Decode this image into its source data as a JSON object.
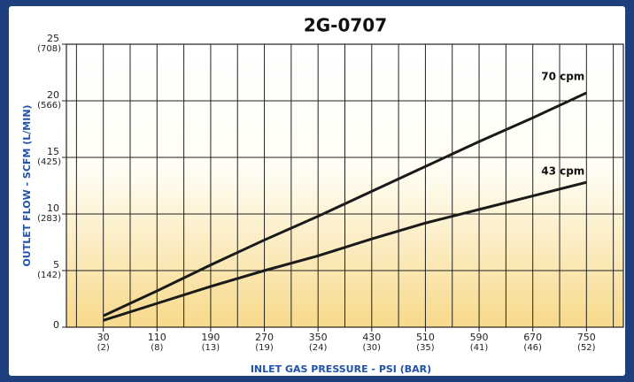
{
  "chart_data": {
    "type": "line",
    "title": "2G-0707",
    "x_label": "INLET GAS PRESSURE - PSI (BAR)",
    "y_label": "OUTLET FLOW - SCFM (L/MIN)",
    "x": [
      30,
      110,
      190,
      270,
      350,
      430,
      510,
      590,
      670,
      750
    ],
    "series": [
      {
        "name": "70 cpm",
        "color": "#1a1a1a",
        "values": [
          1.0,
          3.2,
          5.5,
          7.7,
          9.8,
          12.0,
          14.2,
          16.4,
          18.5,
          20.7
        ]
      },
      {
        "name": "43 cpm",
        "color": "#1a1a1a",
        "values": [
          0.6,
          2.1,
          3.6,
          5.0,
          6.3,
          7.8,
          9.2,
          10.4,
          11.6,
          12.8
        ]
      }
    ],
    "xlim": [
      -25,
      805
    ],
    "xticks": [
      {
        "value": 30,
        "label": "30",
        "sublabel": "(2)"
      },
      {
        "value": 110,
        "label": "110",
        "sublabel": "(8)"
      },
      {
        "value": 190,
        "label": "190",
        "sublabel": "(13)"
      },
      {
        "value": 270,
        "label": "270",
        "sublabel": "(19)"
      },
      {
        "value": 350,
        "label": "350",
        "sublabel": "(24)"
      },
      {
        "value": 430,
        "label": "430",
        "sublabel": "(30)"
      },
      {
        "value": 510,
        "label": "510",
        "sublabel": "(35)"
      },
      {
        "value": 590,
        "label": "590",
        "sublabel": "(41)"
      },
      {
        "value": 670,
        "label": "670",
        "sublabel": "(46)"
      },
      {
        "value": 750,
        "label": "750",
        "sublabel": "(52)"
      }
    ],
    "x_minor_grid": [
      -10,
      70,
      150,
      230,
      310,
      390,
      470,
      550,
      630,
      710,
      790
    ],
    "ylim": [
      0,
      25
    ],
    "yticks": [
      0,
      {
        "value": 5,
        "label": "5",
        "sublabel": "(142)"
      },
      {
        "value": 10,
        "label": "10",
        "sublabel": "(283)"
      },
      {
        "value": 15,
        "label": "15",
        "sublabel": "(425)"
      },
      {
        "value": 20,
        "label": "20",
        "sublabel": "(566)"
      },
      {
        "value": 25,
        "label": "25",
        "sublabel": "(708)"
      }
    ],
    "grid": true
  }
}
